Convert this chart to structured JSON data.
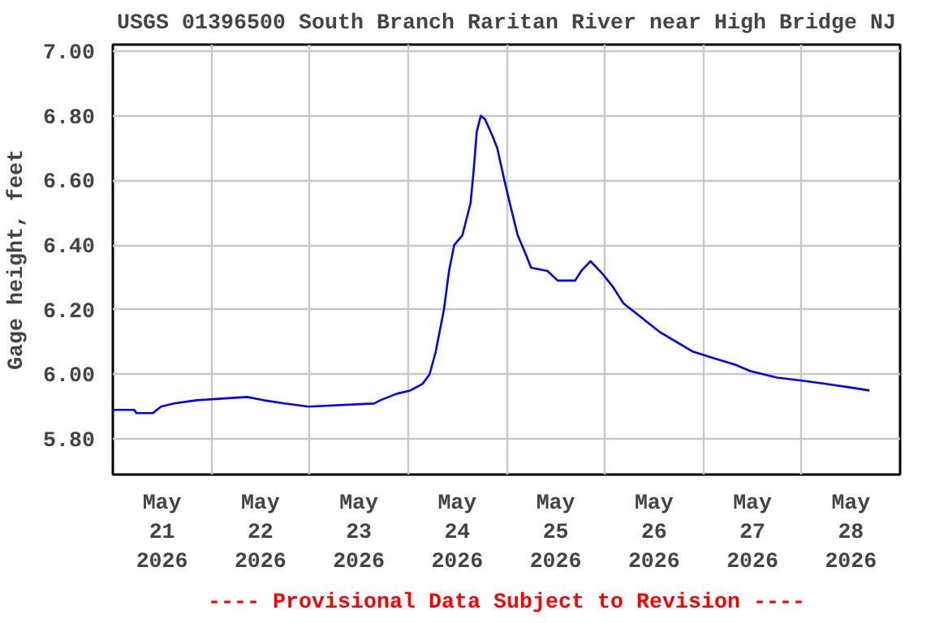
{
  "chart_data": {
    "type": "line",
    "title": "USGS 01396500 South Branch Raritan River near High Bridge NJ",
    "ylabel": "Gage height, feet",
    "x": [
      "2026-05-21T00:00",
      "2026-05-21T05:15",
      "2026-05-21T05:45",
      "2026-05-21T09:45",
      "2026-05-21T11:45",
      "2026-05-21T15:00",
      "2026-05-21T20:30",
      "2026-05-22T08:45",
      "2026-05-22T12:45",
      "2026-05-22T17:45",
      "2026-05-22T23:45",
      "2026-05-23T15:45",
      "2026-05-23T17:15",
      "2026-05-23T19:15",
      "2026-05-23T21:15",
      "2026-05-24T00:30",
      "2026-05-24T03:30",
      "2026-05-24T05:15",
      "2026-05-24T06:45",
      "2026-05-24T08:45",
      "2026-05-24T10:00",
      "2026-05-24T11:15",
      "2026-05-24T13:15",
      "2026-05-24T15:15",
      "2026-05-24T16:00",
      "2026-05-24T16:45",
      "2026-05-24T17:45",
      "2026-05-24T18:45",
      "2026-05-24T20:30",
      "2026-05-24T21:45",
      "2026-05-24T23:30",
      "2026-05-25T01:00",
      "2026-05-25T02:45",
      "2026-05-25T04:45",
      "2026-05-25T06:00",
      "2026-05-25T10:00",
      "2026-05-25T12:30",
      "2026-05-25T16:45",
      "2026-05-25T18:15",
      "2026-05-25T20:30",
      "2026-05-25T23:30",
      "2026-05-26T02:00",
      "2026-05-26T04:30",
      "2026-05-26T08:30",
      "2026-05-26T13:30",
      "2026-05-26T17:30",
      "2026-05-26T21:30",
      "2026-05-27T02:30",
      "2026-05-27T07:45",
      "2026-05-27T11:30",
      "2026-05-27T18:00",
      "2026-05-28T00:30",
      "2026-05-28T06:15",
      "2026-05-28T11:30",
      "2026-05-28T16:30"
    ],
    "series": [
      {
        "color": "#0000ff",
        "values": [
          5.89,
          5.89,
          5.88,
          5.88,
          5.9,
          5.91,
          5.92,
          5.93,
          5.92,
          5.91,
          5.9,
          5.91,
          5.92,
          5.93,
          5.94,
          5.95,
          5.97,
          6.0,
          6.07,
          6.2,
          6.32,
          6.4,
          6.43,
          6.53,
          6.63,
          6.75,
          6.8,
          6.79,
          6.74,
          6.7,
          6.6,
          6.52,
          6.43,
          6.37,
          6.33,
          6.32,
          6.29,
          6.29,
          6.32,
          6.35,
          6.31,
          6.27,
          6.22,
          6.18,
          6.13,
          6.1,
          6.07,
          6.05,
          6.03,
          6.01,
          5.99,
          5.98,
          5.97,
          5.96,
          5.95
        ]
      }
    ],
    "xlim": [
      "2026-05-21",
      "2026-05-29"
    ],
    "xticks": [
      {
        "value": "2026-05-21T12:00",
        "label": "May\n21\n2026"
      },
      {
        "value": "2026-05-22T12:00",
        "label": "May\n22\n2026"
      },
      {
        "value": "2026-05-23T12:00",
        "label": "May\n23\n2026"
      },
      {
        "value": "2026-05-24T12:00",
        "label": "May\n24\n2026"
      },
      {
        "value": "2026-05-25T12:00",
        "label": "May\n25\n2026"
      },
      {
        "value": "2026-05-26T12:00",
        "label": "May\n26\n2026"
      },
      {
        "value": "2026-05-27T12:00",
        "label": "May\n27\n2026"
      },
      {
        "value": "2026-05-28T12:00",
        "label": "May\n28\n2026"
      },
      {
        "value": "2026-05-22",
        "label": null
      },
      {
        "value": "2026-05-23",
        "label": null
      },
      {
        "value": "2026-05-24",
        "label": null
      },
      {
        "value": "2026-05-25",
        "label": null
      },
      {
        "value": "2026-05-26",
        "label": null
      },
      {
        "value": "2026-05-27",
        "label": null
      },
      {
        "value": "2026-05-28",
        "label": null
      }
    ],
    "ylim": [
      5.69,
      7.02
    ],
    "yticks": [
      {
        "value": 5.8,
        "label": "5.80"
      },
      {
        "value": 6.0,
        "label": "6.00"
      },
      {
        "value": 6.2,
        "label": "6.20"
      },
      {
        "value": 6.4,
        "label": "6.40"
      },
      {
        "value": 6.6,
        "label": "6.60"
      },
      {
        "value": 6.8,
        "label": "6.80"
      },
      {
        "value": 7.0,
        "label": "7.00"
      }
    ],
    "grid": true,
    "annotations": [
      "---- Provisional Data Subject to Revision ----"
    ]
  }
}
